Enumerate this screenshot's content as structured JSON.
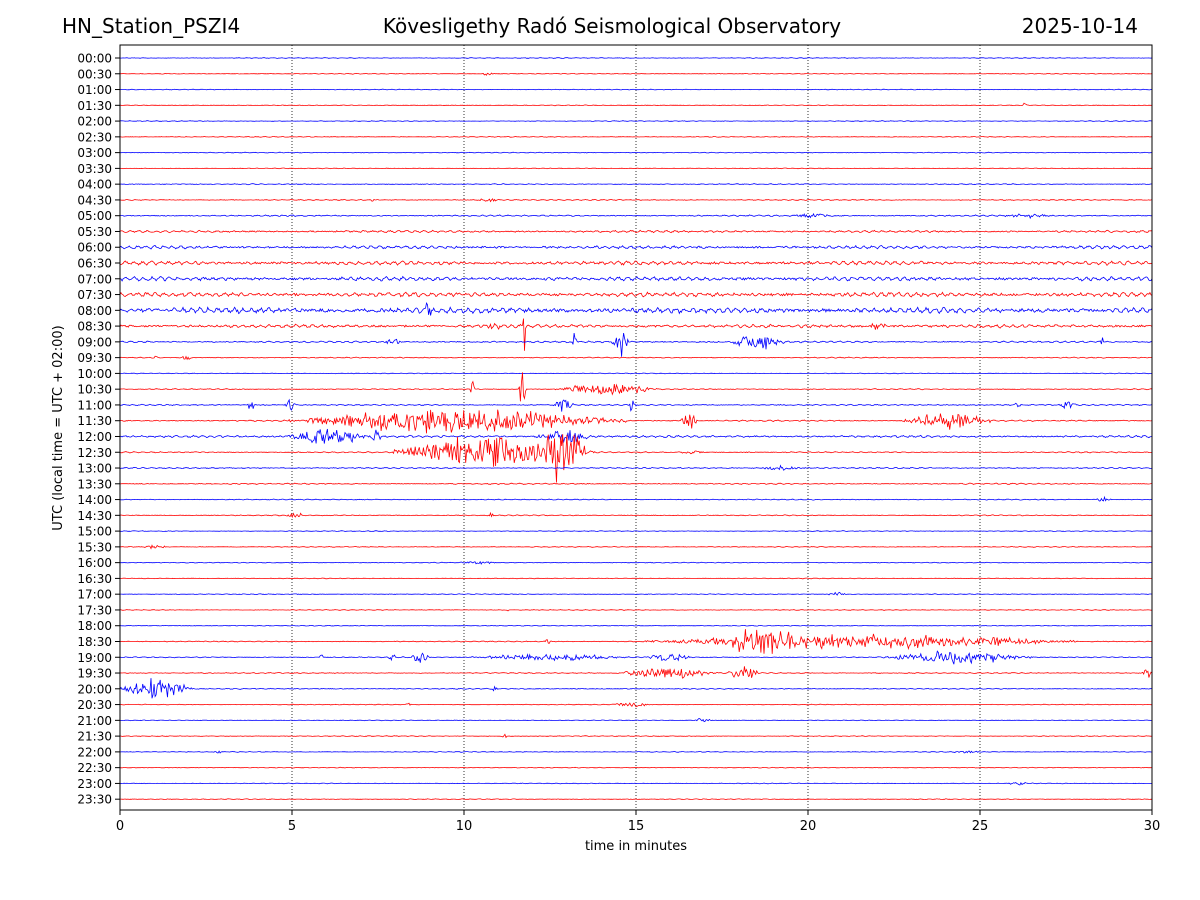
{
  "header": {
    "station": "HN_Station_PSZI4",
    "observatory": "Kövesligethy Radó Seismological Observatory",
    "date": "2025-10-14"
  },
  "chart_data": {
    "type": "line",
    "title": "Kövesligethy Radó Seismological Observatory",
    "xlabel": "time in minutes",
    "ylabel": "UTC (local time = UTC + 02:00)",
    "xlim": [
      0,
      30
    ],
    "xticks": [
      0,
      5,
      10,
      15,
      20,
      25,
      30
    ],
    "grid": "dotted vertical lines at x ticks",
    "colors": {
      "even": "#0000ff",
      "odd": "#ff0000"
    },
    "rows": [
      "00:00",
      "00:30",
      "01:00",
      "01:30",
      "02:00",
      "02:30",
      "03:00",
      "03:30",
      "04:00",
      "04:30",
      "05:00",
      "05:30",
      "06:00",
      "06:30",
      "07:00",
      "07:30",
      "08:00",
      "08:30",
      "09:00",
      "09:30",
      "10:00",
      "10:30",
      "11:00",
      "11:30",
      "12:00",
      "12:30",
      "13:00",
      "13:30",
      "14:00",
      "14:30",
      "15:00",
      "15:30",
      "16:00",
      "16:30",
      "17:00",
      "17:30",
      "18:00",
      "18:30",
      "19:00",
      "19:30",
      "20:00",
      "20:30",
      "21:00",
      "21:30",
      "22:00",
      "22:30",
      "23:00",
      "23:30"
    ],
    "noise_level": [
      0.3,
      0.3,
      0.3,
      0.3,
      0.3,
      0.3,
      0.3,
      0.3,
      0.4,
      0.4,
      0.6,
      0.9,
      1.3,
      1.6,
      1.7,
      1.8,
      2.4,
      1.4,
      0.7,
      0.4,
      0.3,
      0.4,
      0.5,
      0.6,
      0.9,
      0.5,
      0.5,
      0.5,
      0.4,
      0.4,
      0.3,
      0.3,
      0.3,
      0.3,
      0.3,
      0.3,
      0.3,
      0.4,
      0.4,
      0.4,
      0.4,
      0.3,
      0.3,
      0.3,
      0.3,
      0.3,
      0.3,
      0.3
    ],
    "events": [
      {
        "row": "00:30",
        "t": 10.5,
        "dur": 0.4,
        "amp": 1.8
      },
      {
        "row": "01:30",
        "t": 26.2,
        "dur": 0.2,
        "amp": 2.0
      },
      {
        "row": "04:30",
        "t": 7.3,
        "dur": 0.1,
        "amp": 3.0
      },
      {
        "row": "04:30",
        "t": 10.3,
        "dur": 0.8,
        "amp": 1.5
      },
      {
        "row": "05:00",
        "t": 19.5,
        "dur": 1.2,
        "amp": 2.5
      },
      {
        "row": "05:00",
        "t": 25.7,
        "dur": 1.3,
        "amp": 2.0
      },
      {
        "row": "08:00",
        "t": 8.7,
        "dur": 0.5,
        "amp": 6.0
      },
      {
        "row": "08:30",
        "t": 10.5,
        "dur": 0.8,
        "amp": 3.0
      },
      {
        "row": "08:30",
        "t": 11.7,
        "dur": 0.1,
        "amp": 28.0
      },
      {
        "row": "08:30",
        "t": 21.8,
        "dur": 0.5,
        "amp": 5.0
      },
      {
        "row": "09:00",
        "t": 13.1,
        "dur": 0.2,
        "amp": 18.0
      },
      {
        "row": "09:00",
        "t": 14.3,
        "dur": 0.5,
        "amp": 14.0
      },
      {
        "row": "09:00",
        "t": 17.7,
        "dur": 1.6,
        "amp": 8.0
      },
      {
        "row": "09:00",
        "t": 7.7,
        "dur": 0.5,
        "amp": 4.0
      },
      {
        "row": "09:00",
        "t": 28.5,
        "dur": 0.1,
        "amp": 7.0
      },
      {
        "row": "09:30",
        "t": 1.0,
        "dur": 0.1,
        "amp": 4.0
      },
      {
        "row": "09:30",
        "t": 1.8,
        "dur": 0.3,
        "amp": 3.0
      },
      {
        "row": "10:30",
        "t": 10.2,
        "dur": 0.1,
        "amp": 35.0
      },
      {
        "row": "10:30",
        "t": 11.6,
        "dur": 0.2,
        "amp": 28.0
      },
      {
        "row": "10:30",
        "t": 12.6,
        "dur": 3.0,
        "amp": 6.0
      },
      {
        "row": "11:00",
        "t": 3.7,
        "dur": 0.2,
        "amp": 14.0
      },
      {
        "row": "11:00",
        "t": 4.8,
        "dur": 0.3,
        "amp": 9.0
      },
      {
        "row": "11:00",
        "t": 12.6,
        "dur": 0.6,
        "amp": 8.0
      },
      {
        "row": "11:00",
        "t": 14.8,
        "dur": 0.2,
        "amp": 12.0
      },
      {
        "row": "11:00",
        "t": 26.0,
        "dur": 0.2,
        "amp": 5.0
      },
      {
        "row": "11:00",
        "t": 27.3,
        "dur": 0.5,
        "amp": 5.0
      },
      {
        "row": "11:30",
        "t": 4.9,
        "dur": 9.8,
        "amp": 12.0
      },
      {
        "row": "11:30",
        "t": 16.3,
        "dur": 0.5,
        "amp": 10.0
      },
      {
        "row": "11:30",
        "t": 22.8,
        "dur": 2.5,
        "amp": 9.0
      },
      {
        "row": "12:00",
        "t": 4.8,
        "dur": 2.5,
        "amp": 8.0
      },
      {
        "row": "12:00",
        "t": 7.3,
        "dur": 0.3,
        "amp": 10.0
      },
      {
        "row": "12:00",
        "t": 12.1,
        "dur": 1.6,
        "amp": 7.0
      },
      {
        "row": "12:30",
        "t": 7.9,
        "dur": 5.9,
        "amp": 16.0
      },
      {
        "row": "12:30",
        "t": 12.3,
        "dur": 1.2,
        "amp": 30.0
      },
      {
        "row": "12:30",
        "t": 16.2,
        "dur": 0.8,
        "amp": 2.0
      },
      {
        "row": "13:00",
        "t": 18.5,
        "dur": 1.5,
        "amp": 2.0
      },
      {
        "row": "14:00",
        "t": 28.3,
        "dur": 0.6,
        "amp": 2.0
      },
      {
        "row": "14:30",
        "t": 4.8,
        "dur": 0.6,
        "amp": 2.5
      },
      {
        "row": "14:30",
        "t": 10.7,
        "dur": 0.2,
        "amp": 3.0
      },
      {
        "row": "15:30",
        "t": 0.6,
        "dur": 0.8,
        "amp": 2.0
      },
      {
        "row": "16:00",
        "t": 9.8,
        "dur": 1.2,
        "amp": 1.5
      },
      {
        "row": "17:00",
        "t": 20.5,
        "dur": 0.7,
        "amp": 2.0
      },
      {
        "row": "17:30",
        "t": 11.2,
        "dur": 0.1,
        "amp": 3.0
      },
      {
        "row": "18:30",
        "t": 15.2,
        "dur": 12.6,
        "amp": 7.0
      },
      {
        "row": "18:30",
        "t": 17.4,
        "dur": 2.5,
        "amp": 13.0
      },
      {
        "row": "18:30",
        "t": 20.9,
        "dur": 0.2,
        "amp": 9.0
      },
      {
        "row": "18:30",
        "t": 12.3,
        "dur": 0.3,
        "amp": 3.0
      },
      {
        "row": "19:00",
        "t": 5.8,
        "dur": 0.1,
        "amp": 5.0
      },
      {
        "row": "19:00",
        "t": 7.8,
        "dur": 0.2,
        "amp": 7.0
      },
      {
        "row": "19:00",
        "t": 8.4,
        "dur": 0.6,
        "amp": 6.0
      },
      {
        "row": "19:00",
        "t": 10.2,
        "dur": 4.5,
        "amp": 3.0
      },
      {
        "row": "19:00",
        "t": 15.3,
        "dur": 1.4,
        "amp": 4.0
      },
      {
        "row": "19:00",
        "t": 22.2,
        "dur": 4.3,
        "amp": 6.0
      },
      {
        "row": "19:30",
        "t": 14.4,
        "dur": 3.0,
        "amp": 5.0
      },
      {
        "row": "19:30",
        "t": 17.7,
        "dur": 0.9,
        "amp": 8.0
      },
      {
        "row": "19:30",
        "t": 29.7,
        "dur": 0.3,
        "amp": 6.0
      },
      {
        "row": "20:00",
        "t": 0.0,
        "dur": 2.1,
        "amp": 10.0
      },
      {
        "row": "20:00",
        "t": 10.8,
        "dur": 0.2,
        "amp": 3.0
      },
      {
        "row": "20:30",
        "t": 14.3,
        "dur": 1.1,
        "amp": 3.0
      },
      {
        "row": "20:30",
        "t": 8.3,
        "dur": 0.2,
        "amp": 2.0
      },
      {
        "row": "21:00",
        "t": 16.7,
        "dur": 0.5,
        "amp": 2.5
      },
      {
        "row": "21:30",
        "t": 11.1,
        "dur": 0.2,
        "amp": 2.0
      },
      {
        "row": "22:00",
        "t": 2.7,
        "dur": 0.3,
        "amp": 2.0
      },
      {
        "row": "22:00",
        "t": 24.2,
        "dur": 0.8,
        "amp": 1.5
      },
      {
        "row": "23:00",
        "t": 25.8,
        "dur": 0.8,
        "amp": 1.5
      }
    ]
  }
}
